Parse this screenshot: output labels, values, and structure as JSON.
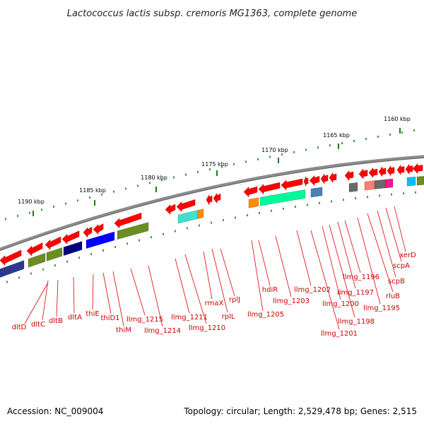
{
  "title": "Lactococcus lactis subsp. cremoris MG1363, complete genome",
  "footer": {
    "accession": "Accession: NC_009004",
    "summary": "Topology: circular; Length: 2,529,478 bp; Genes: 2,515"
  },
  "colors": {
    "backbone": "#7a7a7a",
    "tick": "#1a7a1a",
    "arrow": "#ff0000",
    "label": "#cc0000"
  },
  "tick_labels": [
    "1160 kbp",
    "1165 kbp",
    "1170 kbp",
    "1175 kbp",
    "1180 kbp",
    "1185 kbp",
    "1190 kbp"
  ],
  "gene_labels": [
    "dltD",
    "dltC",
    "dltB",
    "dltA",
    "thiE",
    "thiD1",
    "thiM",
    "llmg_1215",
    "llmg_1214",
    "llmg_1211",
    "llmg_1210",
    "rmaX",
    "rplL",
    "rplJ",
    "llmg_1205",
    "hdiR",
    "llmg_1203",
    "llmg_1202",
    "llmg_1201",
    "llmg_1200",
    "llmg_1198",
    "llmg_1197",
    "llmg_1196",
    "llmg_1195",
    "rluB",
    "scpB",
    "scpA",
    "xerD"
  ],
  "domain_colors": [
    "#2b3a8f",
    "#6b8e23",
    "#000080",
    "#0000ff",
    "#6b8e23",
    "#40e0d0",
    "#ff8c00",
    "#00fa9a",
    "#4682b4",
    "#ff1493",
    "#00bfff",
    "#696969",
    "#fa8072",
    "#f08080"
  ]
}
